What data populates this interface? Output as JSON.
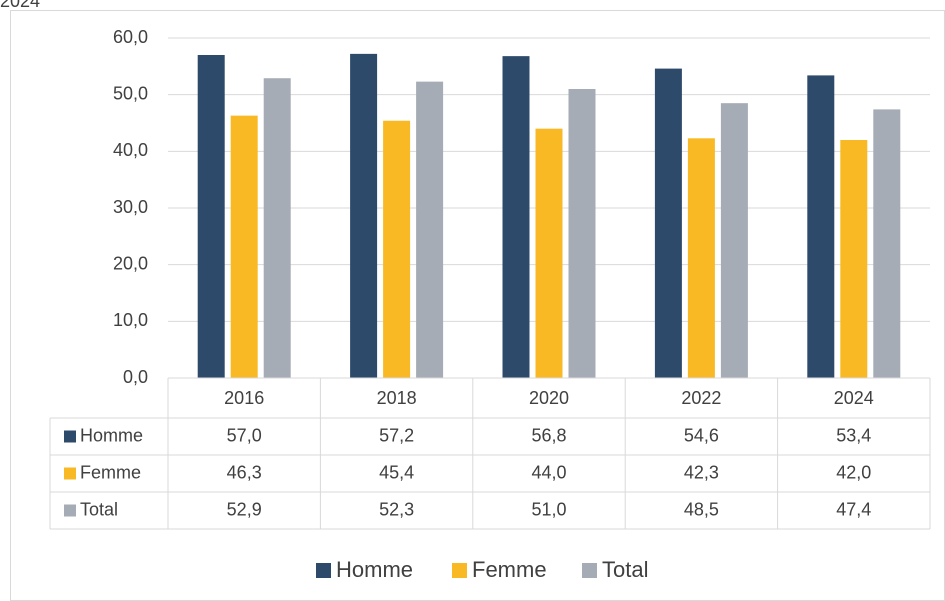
{
  "chart_data": {
    "type": "bar",
    "caption": "2024",
    "categories": [
      "2016",
      "2018",
      "2020",
      "2022",
      "2024"
    ],
    "series": [
      {
        "name": "Homme",
        "color": "#2e4a6b",
        "values": [
          57.0,
          57.2,
          56.8,
          54.6,
          53.4
        ],
        "value_labels": [
          "57,0",
          "57,2",
          "56,8",
          "54,6",
          "53,4"
        ]
      },
      {
        "name": "Femme",
        "color": "#f9b925",
        "values": [
          46.3,
          45.4,
          44.0,
          42.3,
          42.0
        ],
        "value_labels": [
          "46,3",
          "45,4",
          "44,0",
          "42,3",
          "42,0"
        ]
      },
      {
        "name": "Total",
        "color": "#a5acb5",
        "values": [
          52.9,
          52.3,
          51.0,
          48.5,
          47.4
        ],
        "value_labels": [
          "52,9",
          "52,3",
          "51,0",
          "48,5",
          "47,4"
        ]
      }
    ],
    "ylim": [
      0,
      60
    ],
    "yticks": [
      {
        "value": 0,
        "label": "0,0"
      },
      {
        "value": 10,
        "label": "10,0"
      },
      {
        "value": 20,
        "label": "20,0"
      },
      {
        "value": 30,
        "label": "30,0"
      },
      {
        "value": 40,
        "label": "40,0"
      },
      {
        "value": 50,
        "label": "50,0"
      },
      {
        "value": 60,
        "label": "60,0"
      }
    ],
    "grid": true,
    "legend": "bottom",
    "data_table": true
  }
}
